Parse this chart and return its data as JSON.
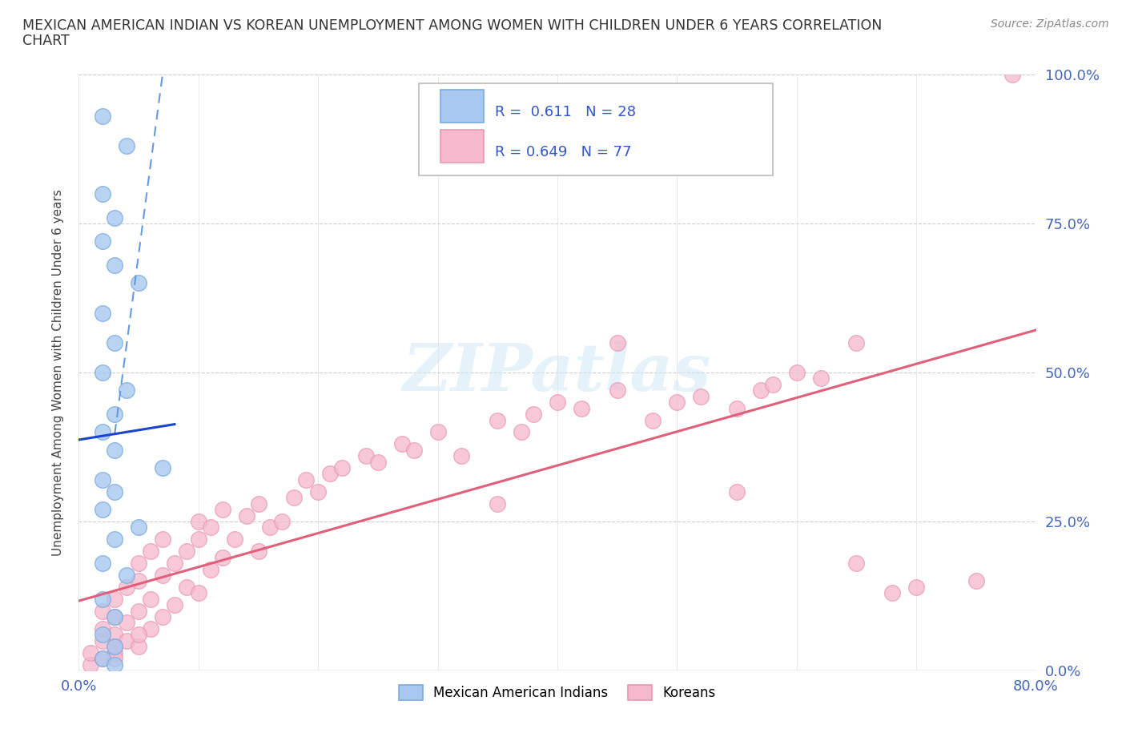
{
  "title_line1": "MEXICAN AMERICAN INDIAN VS KOREAN UNEMPLOYMENT AMONG WOMEN WITH CHILDREN UNDER 6 YEARS CORRELATION",
  "title_line2": "CHART",
  "source": "Source: ZipAtlas.com",
  "ylabel": "Unemployment Among Women with Children Under 6 years",
  "xlim": [
    0,
    80
  ],
  "ylim": [
    0,
    100
  ],
  "R_blue": 0.611,
  "N_blue": 28,
  "R_pink": 0.649,
  "N_pink": 77,
  "blue_fill": "#a8c8f0",
  "blue_edge": "#7aabde",
  "pink_fill": "#f5b8cc",
  "pink_edge": "#e898b8",
  "blue_line_color": "#1a45cc",
  "blue_dash_color": "#6699dd",
  "pink_line_color": "#e0607a",
  "legend_label_blue": "Mexican American Indians",
  "legend_label_pink": "Koreans",
  "watermark": "ZIPatlas",
  "blue_x": [
    2,
    4,
    2,
    3,
    2,
    3,
    5,
    2,
    3,
    2,
    4,
    3,
    2,
    3,
    7,
    2,
    3,
    2,
    5,
    3,
    2,
    4,
    2,
    3,
    2,
    3,
    2,
    3
  ],
  "blue_y": [
    93,
    88,
    80,
    76,
    72,
    68,
    65,
    60,
    55,
    50,
    47,
    43,
    40,
    37,
    34,
    32,
    30,
    27,
    24,
    22,
    18,
    16,
    12,
    9,
    6,
    4,
    2,
    1
  ],
  "pink_x": [
    1,
    1,
    2,
    2,
    2,
    2,
    3,
    3,
    3,
    3,
    4,
    4,
    4,
    5,
    5,
    5,
    5,
    6,
    6,
    6,
    7,
    7,
    7,
    8,
    8,
    9,
    9,
    10,
    10,
    10,
    11,
    11,
    12,
    12,
    13,
    14,
    15,
    15,
    16,
    17,
    18,
    19,
    20,
    21,
    22,
    24,
    25,
    27,
    28,
    30,
    32,
    35,
    37,
    38,
    40,
    42,
    45,
    48,
    50,
    52,
    55,
    57,
    58,
    60,
    62,
    65,
    68,
    70,
    75,
    78,
    35,
    45,
    55,
    65,
    3,
    3,
    5
  ],
  "pink_y": [
    1,
    3,
    2,
    5,
    7,
    10,
    3,
    6,
    9,
    12,
    5,
    8,
    14,
    4,
    10,
    15,
    18,
    7,
    12,
    20,
    9,
    16,
    22,
    11,
    18,
    14,
    20,
    13,
    22,
    25,
    17,
    24,
    19,
    27,
    22,
    26,
    20,
    28,
    24,
    25,
    29,
    32,
    30,
    33,
    34,
    36,
    35,
    38,
    37,
    40,
    36,
    42,
    40,
    43,
    45,
    44,
    47,
    42,
    45,
    46,
    44,
    47,
    48,
    50,
    49,
    55,
    13,
    14,
    15,
    100,
    28,
    55,
    30,
    18,
    2,
    4,
    6
  ]
}
